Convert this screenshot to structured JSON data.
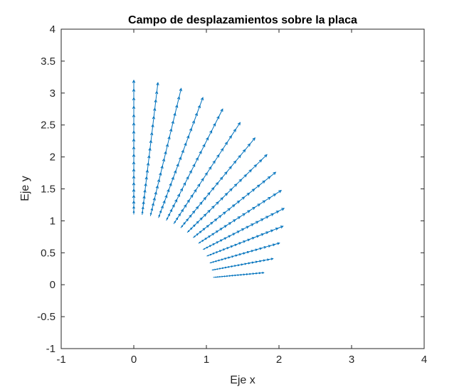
{
  "colors": {
    "series": "#0072BD",
    "axis": "#262626",
    "background": "#ffffff"
  },
  "chart_data": {
    "type": "quiver",
    "title": "Campo de desplazamientos sobre la placa",
    "xlabel": "Eje x",
    "ylabel": "Eje y",
    "xlim": [
      -1,
      4
    ],
    "ylim": [
      -1,
      4
    ],
    "xticks": [
      -1,
      0,
      1,
      2,
      3,
      4
    ],
    "yticks": [
      -1,
      -0.5,
      0,
      0.5,
      1,
      1.5,
      2,
      2.5,
      3,
      3.5,
      4
    ],
    "xtick_labels": [
      "-1",
      "0",
      "1",
      "2",
      "3",
      "4"
    ],
    "ytick_labels": [
      "-1",
      "-0.5",
      "0",
      "0.5",
      "1",
      "1.5",
      "2",
      "2.5",
      "3",
      "3.5",
      "4"
    ],
    "grid": false,
    "box": true,
    "radii": [
      1.1,
      1.2,
      1.3,
      1.4,
      1.5,
      1.6,
      1.7,
      1.8,
      1.9,
      2.0,
      2.1,
      2.2,
      2.3,
      2.4,
      2.5,
      2.6,
      2.7,
      2.8,
      2.9,
      3.0
    ],
    "angles_deg": [
      90,
      84,
      78,
      72,
      66,
      60,
      54,
      48,
      42,
      36,
      30,
      24,
      18,
      12,
      6
    ],
    "outer_tip_radius": [
      3.2,
      3.18,
      3.14,
      3.08,
      3.01,
      2.93,
      2.84,
      2.74,
      2.63,
      2.51,
      2.39,
      2.25,
      2.11,
      1.96,
      1.8
    ],
    "outer_tip_angle_deg": [
      90,
      84,
      78,
      72,
      66,
      60,
      54,
      48,
      42,
      36,
      30,
      24,
      18,
      12,
      6
    ]
  }
}
